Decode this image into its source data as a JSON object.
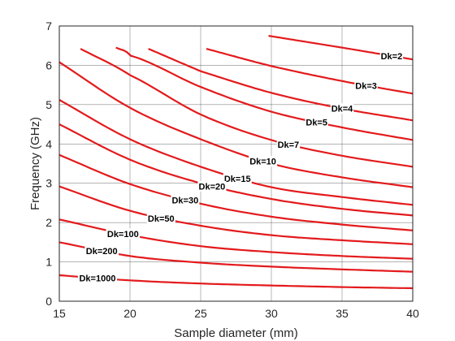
{
  "chart_data": {
    "type": "line",
    "title": "",
    "xlabel": "Sample diameter (mm)",
    "ylabel": "Frequency (GHz)",
    "xlim": [
      15,
      40
    ],
    "ylim": [
      0,
      7
    ],
    "xticks": [
      15,
      20,
      25,
      30,
      35,
      40
    ],
    "yticks": [
      0,
      1,
      2,
      3,
      4,
      5,
      6,
      7
    ],
    "grid": true,
    "line_color": "#e31a1c",
    "series": [
      {
        "name": "Dk=2",
        "x": [
          29.8,
          35,
          40
        ],
        "y": [
          6.75,
          6.45,
          6.15
        ],
        "label_x": 38.5
      },
      {
        "name": "Dk=3",
        "x": [
          25.4,
          30,
          35,
          40
        ],
        "y": [
          6.42,
          5.98,
          5.6,
          5.28
        ],
        "label_x": 36.7
      },
      {
        "name": "Dk=4",
        "x": [
          21.3,
          25,
          30,
          35,
          40
        ],
        "y": [
          6.42,
          5.85,
          5.3,
          4.9,
          4.6
        ],
        "label_x": 35.0
      },
      {
        "name": "Dk=5",
        "x": [
          19.0,
          20,
          25,
          30,
          35,
          40
        ],
        "y": [
          6.45,
          6.25,
          5.45,
          4.82,
          4.42,
          4.1
        ],
        "label_x": 33.2
      },
      {
        "name": "Dk=7",
        "x": [
          16.5,
          20,
          25,
          30,
          35,
          40
        ],
        "y": [
          6.42,
          5.75,
          4.75,
          4.1,
          3.7,
          3.42
        ],
        "label_x": 31.2
      },
      {
        "name": "Dk=10",
        "x": [
          15,
          20,
          25,
          30,
          35,
          40
        ],
        "y": [
          6.08,
          4.92,
          4.12,
          3.5,
          3.15,
          2.9
        ],
        "label_x": 29.4
      },
      {
        "name": "Dk=15",
        "x": [
          15,
          20,
          25,
          30,
          35,
          40
        ],
        "y": [
          5.12,
          4.12,
          3.42,
          2.9,
          2.65,
          2.45
        ],
        "label_x": 27.6
      },
      {
        "name": "Dk=20",
        "x": [
          15,
          20,
          25,
          30,
          35,
          40
        ],
        "y": [
          4.5,
          3.6,
          3.0,
          2.6,
          2.35,
          2.18
        ],
        "label_x": 25.8
      },
      {
        "name": "Dk=30",
        "x": [
          15,
          20,
          25,
          30,
          35,
          40
        ],
        "y": [
          3.72,
          2.98,
          2.48,
          2.15,
          1.95,
          1.8
        ],
        "label_x": 23.9
      },
      {
        "name": "Dk=50",
        "x": [
          15,
          20,
          25,
          30,
          35,
          40
        ],
        "y": [
          2.92,
          2.3,
          1.92,
          1.68,
          1.55,
          1.45
        ],
        "label_x": 22.2
      },
      {
        "name": "Dk=100",
        "x": [
          15,
          20,
          25,
          30,
          35,
          40
        ],
        "y": [
          2.08,
          1.68,
          1.4,
          1.25,
          1.15,
          1.08
        ],
        "label_x": 19.5
      },
      {
        "name": "Dk=200",
        "x": [
          15,
          20,
          25,
          30,
          35,
          40
        ],
        "y": [
          1.5,
          1.15,
          0.98,
          0.88,
          0.81,
          0.75
        ],
        "label_x": 18.0
      },
      {
        "name": "Dk=1000",
        "x": [
          15,
          20,
          25,
          30,
          35,
          40
        ],
        "y": [
          0.66,
          0.53,
          0.45,
          0.4,
          0.36,
          0.33
        ],
        "label_x": 17.7
      }
    ]
  }
}
